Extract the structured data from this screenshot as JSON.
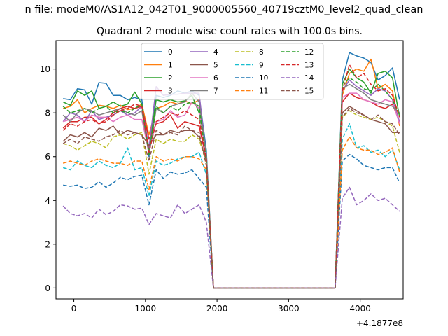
{
  "chart_data": {
    "type": "line",
    "suptitle": "n file: modeM0/AS1A12_042T01_9000005560_40719cztM0_level2_quad_clean",
    "title": "Quadrant 2 module wise count rates with 100.0s bins.",
    "xlabel": "",
    "ylabel": "",
    "x_offset_label": "+4.1877e8",
    "xlim": [
      -250,
      4600
    ],
    "ylim": [
      -0.5,
      11.3
    ],
    "xticks": [
      0,
      1000,
      2000,
      3000,
      4000
    ],
    "yticks": [
      0,
      2,
      4,
      6,
      8,
      10
    ],
    "legend_position": "upper center",
    "x": [
      -150,
      -50,
      50,
      150,
      250,
      350,
      450,
      550,
      650,
      750,
      850,
      950,
      1050,
      1150,
      1250,
      1350,
      1450,
      1550,
      1650,
      1750,
      1850,
      1950,
      2050,
      2150,
      2250,
      2350,
      2450,
      2550,
      2650,
      2750,
      2850,
      2950,
      3050,
      3150,
      3250,
      3350,
      3450,
      3550,
      3650,
      3750,
      3850,
      3950,
      4050,
      4150,
      4250,
      4350,
      4450,
      4550
    ],
    "series": [
      {
        "name": "0",
        "color": "#1f77b4",
        "dash": "solid",
        "values": [
          8.65,
          8.6,
          9.1,
          9.05,
          8.4,
          9.38,
          9.35,
          8.8,
          8.8,
          8.6,
          8.7,
          8.6,
          6.0,
          8.8,
          8.7,
          8.8,
          9.0,
          8.9,
          9.0,
          8.8,
          6.3,
          0,
          0,
          0,
          0,
          0,
          0,
          0,
          0,
          0,
          0,
          0,
          0,
          0,
          0,
          0,
          0,
          0,
          0,
          9.5,
          10.75,
          10.6,
          10.5,
          10.3,
          9.5,
          9.7,
          10.05,
          8.6
        ]
      },
      {
        "name": "1",
        "color": "#ff7f0e",
        "dash": "solid",
        "values": [
          8.2,
          8.3,
          8.6,
          8.0,
          8.2,
          8.35,
          8.3,
          8.2,
          8.35,
          8.15,
          8.2,
          8.4,
          7.0,
          8.2,
          8.3,
          8.5,
          8.4,
          8.55,
          8.4,
          8.6,
          6.0,
          0,
          0,
          0,
          0,
          0,
          0,
          0,
          0,
          0,
          0,
          0,
          0,
          0,
          0,
          0,
          0,
          0,
          0,
          8.8,
          9.8,
          10.0,
          9.9,
          10.45,
          9.1,
          9.3,
          9.0,
          7.4
        ]
      },
      {
        "name": "2",
        "color": "#2ca02c",
        "dash": "solid",
        "values": [
          8.5,
          8.35,
          9.0,
          8.8,
          9.0,
          8.2,
          8.3,
          8.5,
          8.3,
          8.4,
          8.95,
          8.4,
          6.3,
          8.6,
          8.5,
          8.6,
          8.5,
          8.55,
          8.8,
          8.0,
          6.1,
          0,
          0,
          0,
          0,
          0,
          0,
          0,
          0,
          0,
          0,
          0,
          0,
          0,
          0,
          0,
          0,
          0,
          0,
          9.3,
          10.0,
          9.6,
          9.4,
          8.9,
          9.8,
          9.9,
          9.6,
          7.8
        ]
      },
      {
        "name": "3",
        "color": "#d62728",
        "dash": "solid",
        "values": [
          7.3,
          7.6,
          7.6,
          7.8,
          7.8,
          7.5,
          7.7,
          8.0,
          8.2,
          8.3,
          8.2,
          8.3,
          6.8,
          7.5,
          7.6,
          7.9,
          7.3,
          7.6,
          7.5,
          7.4,
          5.9,
          0,
          0,
          0,
          0,
          0,
          0,
          0,
          0,
          0,
          0,
          0,
          0,
          0,
          0,
          0,
          0,
          0,
          0,
          8.5,
          8.9,
          8.7,
          8.6,
          8.5,
          8.3,
          8.2,
          8.4,
          7.6
        ]
      },
      {
        "name": "4",
        "color": "#9467bd",
        "dash": "solid",
        "values": [
          7.6,
          8.0,
          7.9,
          7.6,
          8.1,
          7.7,
          7.8,
          7.9,
          8.1,
          7.9,
          8.0,
          8.3,
          6.4,
          9.2,
          8.8,
          8.85,
          8.85,
          8.9,
          8.9,
          8.9,
          6.0,
          0,
          0,
          0,
          0,
          0,
          0,
          0,
          0,
          0,
          0,
          0,
          0,
          0,
          0,
          0,
          0,
          0,
          0,
          9.0,
          9.5,
          9.2,
          9.0,
          8.8,
          9.1,
          9.0,
          8.6,
          7.6
        ]
      },
      {
        "name": "5",
        "color": "#8c564b",
        "dash": "solid",
        "values": [
          6.7,
          7.0,
          6.9,
          7.1,
          6.9,
          7.3,
          7.2,
          7.4,
          7.0,
          7.2,
          7.1,
          7.0,
          6.5,
          7.0,
          7.0,
          7.2,
          7.1,
          7.2,
          7.2,
          6.9,
          5.8,
          0,
          0,
          0,
          0,
          0,
          0,
          0,
          0,
          0,
          0,
          0,
          0,
          0,
          0,
          0,
          0,
          0,
          0,
          8.0,
          8.3,
          8.1,
          7.9,
          7.7,
          7.6,
          7.5,
          7.1,
          7.1
        ]
      },
      {
        "name": "6",
        "color": "#e377c2",
        "dash": "solid",
        "values": [
          7.6,
          7.7,
          7.8,
          7.6,
          7.9,
          7.8,
          7.8,
          7.6,
          7.8,
          7.9,
          7.7,
          7.7,
          6.2,
          7.6,
          7.7,
          8.1,
          7.8,
          7.9,
          8.5,
          8.2,
          5.9,
          0,
          0,
          0,
          0,
          0,
          0,
          0,
          0,
          0,
          0,
          0,
          0,
          0,
          0,
          0,
          0,
          0,
          0,
          8.7,
          8.9,
          8.9,
          8.6,
          8.5,
          8.4,
          8.6,
          8.5,
          7.5
        ]
      },
      {
        "name": "7",
        "color": "#7f7f7f",
        "dash": "solid",
        "values": [
          7.9,
          7.6,
          8.0,
          8.2,
          8.1,
          7.9,
          8.0,
          8.1,
          8.2,
          8.0,
          7.9,
          8.1,
          6.1,
          8.2,
          8.0,
          8.3,
          8.4,
          8.5,
          8.9,
          8.5,
          6.1,
          0,
          0,
          0,
          0,
          0,
          0,
          0,
          0,
          0,
          0,
          0,
          0,
          0,
          0,
          0,
          0,
          0,
          0,
          9.1,
          9.3,
          9.1,
          8.9,
          8.6,
          8.5,
          8.4,
          8.3,
          8.0
        ]
      },
      {
        "name": "8",
        "color": "#bcbd22",
        "dash": "dash",
        "values": [
          6.6,
          6.5,
          6.3,
          6.5,
          6.7,
          6.6,
          6.4,
          6.9,
          7.0,
          6.8,
          7.0,
          7.1,
          5.2,
          6.8,
          6.6,
          6.8,
          6.7,
          6.7,
          7.0,
          6.8,
          5.7,
          0,
          0,
          0,
          0,
          0,
          0,
          0,
          0,
          0,
          0,
          0,
          0,
          0,
          0,
          0,
          0,
          0,
          0,
          7.8,
          8.1,
          7.9,
          7.8,
          7.7,
          7.8,
          7.6,
          7.4,
          6.2
        ]
      },
      {
        "name": "9",
        "color": "#17becf",
        "dash": "dash",
        "values": [
          5.5,
          5.4,
          5.8,
          5.6,
          5.5,
          5.8,
          5.6,
          5.5,
          5.7,
          6.4,
          5.4,
          5.5,
          4.2,
          5.8,
          5.6,
          5.7,
          5.9,
          6.0,
          6.0,
          6.2,
          5.2,
          0,
          0,
          0,
          0,
          0,
          0,
          0,
          0,
          0,
          0,
          0,
          0,
          0,
          0,
          0,
          0,
          0,
          0,
          6.8,
          7.5,
          6.4,
          6.5,
          6.2,
          6.3,
          6.0,
          6.3,
          5.4
        ]
      },
      {
        "name": "10",
        "color": "#1f77b4",
        "dash": "dash",
        "values": [
          4.7,
          4.65,
          4.7,
          4.55,
          4.6,
          4.85,
          4.6,
          4.8,
          5.05,
          4.95,
          5.1,
          5.15,
          3.8,
          5.4,
          5.0,
          5.3,
          5.2,
          5.25,
          5.4,
          5.0,
          4.6,
          0,
          0,
          0,
          0,
          0,
          0,
          0,
          0,
          0,
          0,
          0,
          0,
          0,
          0,
          0,
          0,
          0,
          0,
          5.8,
          6.1,
          5.9,
          5.6,
          5.5,
          5.4,
          5.5,
          5.5,
          4.8
        ]
      },
      {
        "name": "11",
        "color": "#ff7f0e",
        "dash": "dash",
        "values": [
          5.7,
          5.8,
          5.7,
          5.6,
          5.8,
          5.9,
          5.8,
          5.7,
          5.7,
          5.6,
          5.8,
          5.8,
          4.5,
          6.0,
          5.8,
          5.9,
          5.8,
          6.0,
          6.0,
          5.9,
          5.4,
          0,
          0,
          0,
          0,
          0,
          0,
          0,
          0,
          0,
          0,
          0,
          0,
          0,
          0,
          0,
          0,
          0,
          0,
          6.3,
          6.9,
          6.4,
          6.3,
          6.3,
          6.1,
          6.2,
          6.4,
          5.3
        ]
      },
      {
        "name": "12",
        "color": "#2ca02c",
        "dash": "dash",
        "values": [
          8.3,
          8.0,
          8.1,
          8.2,
          8.0,
          8.2,
          8.3,
          8.0,
          8.1,
          8.0,
          8.2,
          8.4,
          6.1,
          8.3,
          8.0,
          8.3,
          8.1,
          8.4,
          8.5,
          8.3,
          5.8,
          0,
          0,
          0,
          0,
          0,
          0,
          0,
          0,
          0,
          0,
          0,
          0,
          0,
          0,
          0,
          0,
          0,
          0,
          9.2,
          9.6,
          9.4,
          9.1,
          9.0,
          9.3,
          9.0,
          8.6,
          7.9
        ]
      },
      {
        "name": "13",
        "color": "#d62728",
        "dash": "dash",
        "values": [
          7.2,
          7.5,
          7.4,
          7.6,
          7.7,
          7.5,
          7.6,
          7.9,
          8.1,
          8.2,
          8.4,
          8.3,
          6.2,
          7.6,
          7.8,
          8.0,
          7.9,
          8.1,
          7.9,
          7.7,
          5.9,
          0,
          0,
          0,
          0,
          0,
          0,
          0,
          0,
          0,
          0,
          0,
          0,
          0,
          0,
          0,
          0,
          0,
          0,
          9.0,
          10.2,
          9.6,
          9.8,
          9.3,
          9.0,
          9.1,
          8.8,
          7.8
        ]
      },
      {
        "name": "14",
        "color": "#9467bd",
        "dash": "dash",
        "values": [
          3.75,
          3.4,
          3.3,
          3.4,
          3.2,
          3.6,
          3.35,
          3.5,
          3.8,
          3.75,
          3.6,
          3.65,
          2.9,
          3.4,
          3.3,
          3.2,
          3.8,
          3.4,
          3.6,
          3.8,
          3.0,
          0,
          0,
          0,
          0,
          0,
          0,
          0,
          0,
          0,
          0,
          0,
          0,
          0,
          0,
          0,
          0,
          0,
          0,
          4.1,
          4.6,
          3.8,
          4.0,
          4.3,
          4.0,
          4.1,
          3.8,
          3.5
        ]
      },
      {
        "name": "15",
        "color": "#8c564b",
        "dash": "dash",
        "values": [
          6.6,
          6.8,
          6.6,
          6.9,
          6.8,
          6.7,
          6.9,
          7.0,
          7.2,
          7.0,
          7.1,
          7.0,
          5.8,
          7.2,
          7.0,
          7.1,
          7.0,
          7.4,
          7.2,
          7.1,
          5.6,
          0,
          0,
          0,
          0,
          0,
          0,
          0,
          0,
          0,
          0,
          0,
          0,
          0,
          0,
          0,
          0,
          0,
          0,
          7.8,
          8.2,
          8.0,
          7.9,
          7.7,
          7.9,
          7.6,
          7.5,
          7.0
        ]
      }
    ]
  }
}
